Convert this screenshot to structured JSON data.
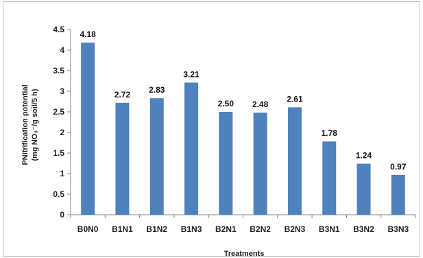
{
  "chart_data": {
    "type": "bar",
    "title": "",
    "xlabel": "Treatments",
    "ylabel_line1": "PNitrification potential",
    "ylabel_line2": "(mg NO₃⁻/g soil/5 h)",
    "categories": [
      "B0N0",
      "B1N1",
      "B1N2",
      "B1N3",
      "B2N1",
      "B2N2",
      "B2N3",
      "B3N1",
      "B3N2",
      "B3N3"
    ],
    "values": [
      4.18,
      2.72,
      2.83,
      3.21,
      2.5,
      2.48,
      2.61,
      1.78,
      1.24,
      0.97
    ],
    "value_labels": [
      "4.18",
      "2.72",
      "2.83",
      "3.21",
      "2.50",
      "2.48",
      "2.61",
      "1.78",
      "1.24",
      "0.97"
    ],
    "ylim": [
      0,
      4.5
    ],
    "yticks": [
      "0",
      "0.5",
      "1",
      "1.5",
      "2",
      "2.5",
      "3",
      "3.5",
      "4",
      "4.5"
    ],
    "grid": false,
    "legend": "none",
    "bar_color": "#4F81BD"
  }
}
